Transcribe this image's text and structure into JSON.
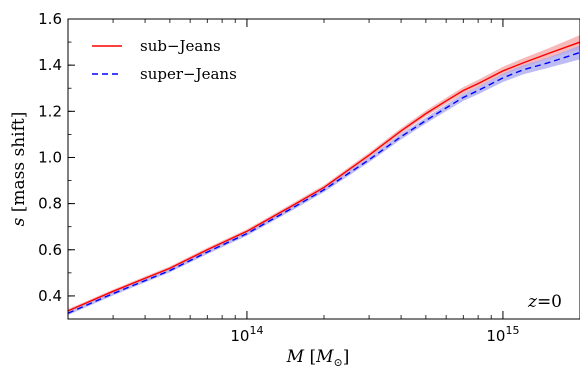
{
  "chart_data": {
    "type": "line",
    "xscale": "log",
    "xlim": [
      20000000000000.0,
      2000000000000000.0
    ],
    "ylim": [
      0.3,
      1.6
    ],
    "xlabel": {
      "var": "M",
      "unit": "[M",
      "unit_sub": "⊙",
      "unit_close": "]"
    },
    "ylabel": {
      "var": "s",
      "text": "[mass shift]"
    },
    "yticks": [
      0.4,
      0.6,
      0.8,
      1.0,
      1.2,
      1.4,
      1.6
    ],
    "ytick_labels": [
      "0.4",
      "0.6",
      "0.8",
      "1.0",
      "1.2",
      "1.4",
      "1.6"
    ],
    "xticks": [
      100000000000000.0,
      1000000000000000.0
    ],
    "xtick_labels": [
      {
        "base": "10",
        "exp": "14"
      },
      {
        "base": "10",
        "exp": "15"
      }
    ],
    "annotation": {
      "var": "z",
      "text": "=0"
    },
    "legend_position": "upper-left",
    "grid": false,
    "x": [
      20000000000000.0,
      30000000000000.0,
      50000000000000.0,
      70000000000000.0,
      100000000000000.0,
      150000000000000.0,
      200000000000000.0,
      300000000000000.0,
      400000000000000.0,
      500000000000000.0,
      600000000000000.0,
      700000000000000.0,
      800000000000000.0,
      1000000000000000.0,
      1200000000000000.0,
      1500000000000000.0,
      2000000000000000.0
    ],
    "series": [
      {
        "name": "sub−Jeans",
        "color": "#ff0000",
        "band_color": "#f4a3a3",
        "dash": "solid",
        "values": [
          0.335,
          0.42,
          0.52,
          0.6,
          0.68,
          0.79,
          0.87,
          1.01,
          1.115,
          1.19,
          1.245,
          1.29,
          1.32,
          1.375,
          1.41,
          1.45,
          1.5
        ],
        "band_width": [
          0.008,
          0.008,
          0.008,
          0.009,
          0.009,
          0.01,
          0.01,
          0.011,
          0.012,
          0.013,
          0.014,
          0.015,
          0.016,
          0.018,
          0.02,
          0.022,
          0.03
        ]
      },
      {
        "name": "super−Jeans",
        "color": "#0000ff",
        "band_color": "#a7a7f0",
        "dash": "dashed",
        "values": [
          0.325,
          0.41,
          0.51,
          0.59,
          0.67,
          0.78,
          0.86,
          0.99,
          1.09,
          1.16,
          1.215,
          1.26,
          1.29,
          1.345,
          1.38,
          1.41,
          1.455
        ],
        "band_width": [
          0.008,
          0.008,
          0.008,
          0.009,
          0.009,
          0.01,
          0.01,
          0.011,
          0.012,
          0.013,
          0.014,
          0.015,
          0.016,
          0.018,
          0.02,
          0.022,
          0.03
        ]
      }
    ]
  }
}
